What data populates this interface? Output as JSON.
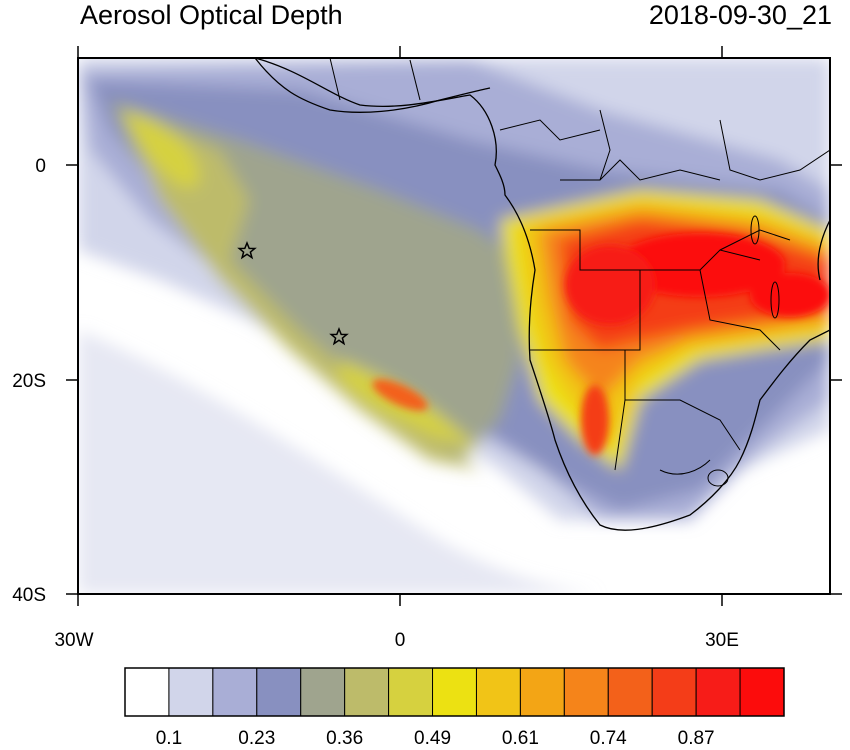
{
  "title_left": "Aerosol Optical Depth",
  "title_right": "2018-09-30_21",
  "lat_labels": [
    "0",
    "20S",
    "40S"
  ],
  "lon_labels": [
    "30W",
    "0",
    "30E"
  ],
  "colorbar": {
    "colors": [
      "#ffffff",
      "#d1d5ea",
      "#a9aed6",
      "#8890c0",
      "#9fa48e",
      "#bdbb6a",
      "#d6d13f",
      "#ece112",
      "#f1c417",
      "#f3a515",
      "#f5841a",
      "#f3611a",
      "#f43d18",
      "#f71c18",
      "#fc0c0c"
    ],
    "tick_labels": [
      "0.1",
      "0.23",
      "0.36",
      "0.49",
      "0.61",
      "0.74",
      "0.87"
    ]
  },
  "markers": [
    {
      "name": "station-1",
      "symbol": "star"
    },
    {
      "name": "station-2",
      "symbol": "star"
    }
  ]
}
